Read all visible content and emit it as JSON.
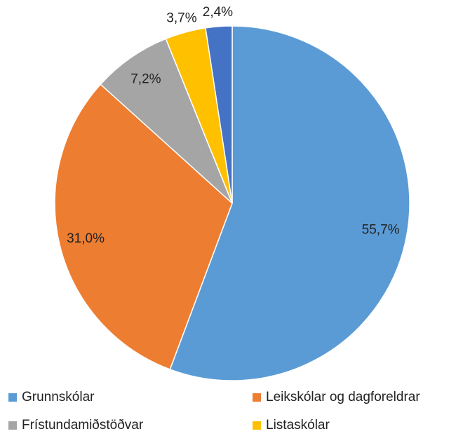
{
  "chart_data": {
    "type": "pie",
    "categories": [
      "Grunnskólar",
      "Leikskólar og dagforeldrar",
      "Frístundamiðstöðvar",
      "Listaskólar",
      null
    ],
    "values": [
      55.7,
      31.0,
      7.2,
      3.7,
      2.4
    ],
    "value_labels": [
      "55,7%",
      "31,0%",
      "7,2%",
      "3,7%",
      "2,4%"
    ],
    "colors": [
      "#5b9bd5",
      "#ed7d31",
      "#a5a5a5",
      "#ffc000",
      "#4472c4"
    ],
    "legend": "bottom"
  }
}
